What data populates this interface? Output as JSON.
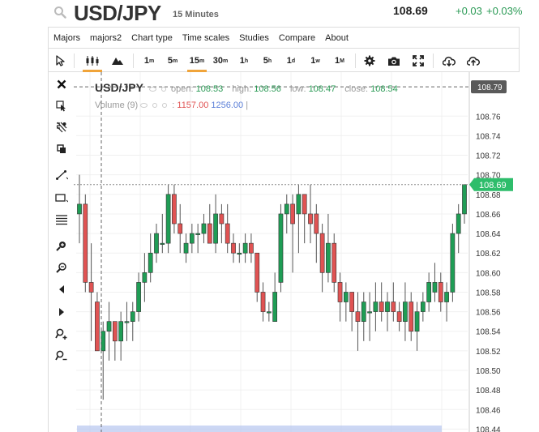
{
  "header": {
    "symbol": "USD/JPY",
    "interval": "15 Minutes",
    "price": "108.69",
    "change": "+0.03",
    "change_pct": "+0.03%"
  },
  "menu": [
    "Majors",
    "majors2",
    "Chart type",
    "Time scales",
    "Studies",
    "Compare",
    "About"
  ],
  "timeframes": [
    {
      "base": "1",
      "unit": "m"
    },
    {
      "base": "5",
      "unit": "m"
    },
    {
      "base": "15",
      "unit": "m"
    },
    {
      "base": "30",
      "unit": "m"
    },
    {
      "base": "1",
      "unit": "h"
    },
    {
      "base": "5",
      "unit": "h"
    },
    {
      "base": "1",
      "unit": "d"
    },
    {
      "base": "1",
      "unit": "w"
    },
    {
      "base": "1",
      "unit": "M"
    }
  ],
  "active_timeframe": "15m",
  "active_chart_type": "candles",
  "toolbar_icons": [
    "cursor-icon",
    "candles-icon",
    "mountain-icon",
    "gear-icon",
    "camera-icon",
    "fullscreen-icon",
    "cloud-download-icon",
    "cloud-upload-icon"
  ],
  "left_tool_icons": [
    "close-icon",
    "crosshair-cursor-icon",
    "fib-tool-icon",
    "copy-icon",
    "trendline-icon",
    "rectangle-icon",
    "horizontal-lines-icon",
    "zoom-in-icon",
    "zoom-out-icon",
    "arrow-left-icon",
    "arrow-right-icon",
    "zoom-in-plus-icon",
    "zoom-out-plus-icon"
  ],
  "legend": {
    "symbol": "USD/JPY",
    "open_label": "open:",
    "open": "108.53",
    "high_label": "high:",
    "high": "108.56",
    "low_label": "low:",
    "low": "108.47",
    "close_label": "close:",
    "close": "108.54",
    "volume_label": "Volume (9)",
    "vol_sep": ":",
    "vol1": "1157.00",
    "vol2": "1256.00",
    "vol_cursor": "|"
  },
  "axis_badges": {
    "crosshair": "108.79",
    "last": "108.69"
  },
  "colors": {
    "up": "#1f9d55",
    "down": "#e05353",
    "accent": "#f0a43a",
    "last_badge": "#2ebd6b",
    "crosshair_badge": "#5a5a5a"
  },
  "chart_data": {
    "type": "candlestick",
    "y_ticks": [
      "108.76",
      "108.74",
      "108.72",
      "108.70",
      "108.68",
      "108.66",
      "108.64",
      "108.62",
      "108.60",
      "108.58",
      "108.56",
      "108.54",
      "108.52",
      "108.50",
      "108.48",
      "108.46",
      "108.44"
    ],
    "ylim": [
      108.437,
      108.805
    ],
    "crosshair_price": 108.79,
    "last_price": 108.69,
    "candles": [
      {
        "o": 108.66,
        "h": 108.7,
        "l": 108.63,
        "c": 108.67
      },
      {
        "o": 108.67,
        "h": 108.68,
        "l": 108.58,
        "c": 108.59
      },
      {
        "o": 108.59,
        "h": 108.63,
        "l": 108.53,
        "c": 108.58
      },
      {
        "o": 108.57,
        "h": 108.58,
        "l": 108.52,
        "c": 108.52
      },
      {
        "o": 108.52,
        "h": 108.55,
        "l": 108.47,
        "c": 108.54
      },
      {
        "o": 108.54,
        "h": 108.57,
        "l": 108.51,
        "c": 108.55
      },
      {
        "o": 108.55,
        "h": 108.55,
        "l": 108.51,
        "c": 108.53
      },
      {
        "o": 108.53,
        "h": 108.56,
        "l": 108.51,
        "c": 108.55
      },
      {
        "o": 108.55,
        "h": 108.57,
        "l": 108.53,
        "c": 108.55
      },
      {
        "o": 108.55,
        "h": 108.57,
        "l": 108.53,
        "c": 108.56
      },
      {
        "o": 108.56,
        "h": 108.6,
        "l": 108.55,
        "c": 108.59
      },
      {
        "o": 108.59,
        "h": 108.62,
        "l": 108.57,
        "c": 108.6
      },
      {
        "o": 108.6,
        "h": 108.64,
        "l": 108.59,
        "c": 108.62
      },
      {
        "o": 108.62,
        "h": 108.65,
        "l": 108.61,
        "c": 108.64
      },
      {
        "o": 108.63,
        "h": 108.66,
        "l": 108.62,
        "c": 108.63
      },
      {
        "o": 108.63,
        "h": 108.69,
        "l": 108.62,
        "c": 108.68
      },
      {
        "o": 108.68,
        "h": 108.69,
        "l": 108.64,
        "c": 108.65
      },
      {
        "o": 108.65,
        "h": 108.67,
        "l": 108.62,
        "c": 108.64
      },
      {
        "o": 108.62,
        "h": 108.64,
        "l": 108.61,
        "c": 108.63
      },
      {
        "o": 108.63,
        "h": 108.65,
        "l": 108.62,
        "c": 108.64
      },
      {
        "o": 108.64,
        "h": 108.65,
        "l": 108.62,
        "c": 108.64
      },
      {
        "o": 108.64,
        "h": 108.66,
        "l": 108.63,
        "c": 108.65
      },
      {
        "o": 108.65,
        "h": 108.67,
        "l": 108.63,
        "c": 108.63
      },
      {
        "o": 108.63,
        "h": 108.68,
        "l": 108.62,
        "c": 108.66
      },
      {
        "o": 108.66,
        "h": 108.67,
        "l": 108.63,
        "c": 108.65
      },
      {
        "o": 108.65,
        "h": 108.67,
        "l": 108.62,
        "c": 108.63
      },
      {
        "o": 108.63,
        "h": 108.64,
        "l": 108.61,
        "c": 108.62
      },
      {
        "o": 108.62,
        "h": 108.63,
        "l": 108.61,
        "c": 108.62
      },
      {
        "o": 108.62,
        "h": 108.64,
        "l": 108.61,
        "c": 108.63
      },
      {
        "o": 108.63,
        "h": 108.64,
        "l": 108.61,
        "c": 108.62
      },
      {
        "o": 108.62,
        "h": 108.62,
        "l": 108.57,
        "c": 108.58
      },
      {
        "o": 108.58,
        "h": 108.59,
        "l": 108.55,
        "c": 108.56
      },
      {
        "o": 108.56,
        "h": 108.57,
        "l": 108.55,
        "c": 108.56
      },
      {
        "o": 108.55,
        "h": 108.6,
        "l": 108.55,
        "c": 108.58
      },
      {
        "o": 108.59,
        "h": 108.67,
        "l": 108.58,
        "c": 108.66
      },
      {
        "o": 108.66,
        "h": 108.68,
        "l": 108.64,
        "c": 108.67
      },
      {
        "o": 108.67,
        "h": 108.68,
        "l": 108.6,
        "c": 108.65
      },
      {
        "o": 108.66,
        "h": 108.69,
        "l": 108.62,
        "c": 108.68
      },
      {
        "o": 108.68,
        "h": 108.68,
        "l": 108.63,
        "c": 108.66
      },
      {
        "o": 108.66,
        "h": 108.69,
        "l": 108.63,
        "c": 108.65
      },
      {
        "o": 108.66,
        "h": 108.67,
        "l": 108.61,
        "c": 108.64
      },
      {
        "o": 108.64,
        "h": 108.65,
        "l": 108.58,
        "c": 108.6
      },
      {
        "o": 108.6,
        "h": 108.66,
        "l": 108.59,
        "c": 108.63
      },
      {
        "o": 108.63,
        "h": 108.64,
        "l": 108.58,
        "c": 108.59
      },
      {
        "o": 108.59,
        "h": 108.6,
        "l": 108.55,
        "c": 108.57
      },
      {
        "o": 108.57,
        "h": 108.59,
        "l": 108.55,
        "c": 108.58
      },
      {
        "o": 108.58,
        "h": 108.58,
        "l": 108.54,
        "c": 108.56
      },
      {
        "o": 108.56,
        "h": 108.58,
        "l": 108.52,
        "c": 108.55
      },
      {
        "o": 108.55,
        "h": 108.58,
        "l": 108.53,
        "c": 108.57
      },
      {
        "o": 108.56,
        "h": 108.58,
        "l": 108.53,
        "c": 108.56
      },
      {
        "o": 108.56,
        "h": 108.59,
        "l": 108.54,
        "c": 108.57
      },
      {
        "o": 108.57,
        "h": 108.59,
        "l": 108.55,
        "c": 108.56
      },
      {
        "o": 108.56,
        "h": 108.58,
        "l": 108.54,
        "c": 108.57
      },
      {
        "o": 108.57,
        "h": 108.59,
        "l": 108.55,
        "c": 108.56
      },
      {
        "o": 108.56,
        "h": 108.57,
        "l": 108.54,
        "c": 108.55
      },
      {
        "o": 108.55,
        "h": 108.59,
        "l": 108.53,
        "c": 108.57
      },
      {
        "o": 108.57,
        "h": 108.58,
        "l": 108.53,
        "c": 108.54
      },
      {
        "o": 108.54,
        "h": 108.57,
        "l": 108.52,
        "c": 108.56
      },
      {
        "o": 108.56,
        "h": 108.58,
        "l": 108.55,
        "c": 108.57
      },
      {
        "o": 108.57,
        "h": 108.6,
        "l": 108.56,
        "c": 108.59
      },
      {
        "o": 108.58,
        "h": 108.61,
        "l": 108.57,
        "c": 108.59
      },
      {
        "o": 108.59,
        "h": 108.6,
        "l": 108.56,
        "c": 108.57
      },
      {
        "o": 108.57,
        "h": 108.59,
        "l": 108.55,
        "c": 108.58
      },
      {
        "o": 108.58,
        "h": 108.65,
        "l": 108.57,
        "c": 108.64
      },
      {
        "o": 108.64,
        "h": 108.67,
        "l": 108.62,
        "c": 108.66
      },
      {
        "o": 108.66,
        "h": 108.69,
        "l": 108.65,
        "c": 108.69
      }
    ]
  }
}
